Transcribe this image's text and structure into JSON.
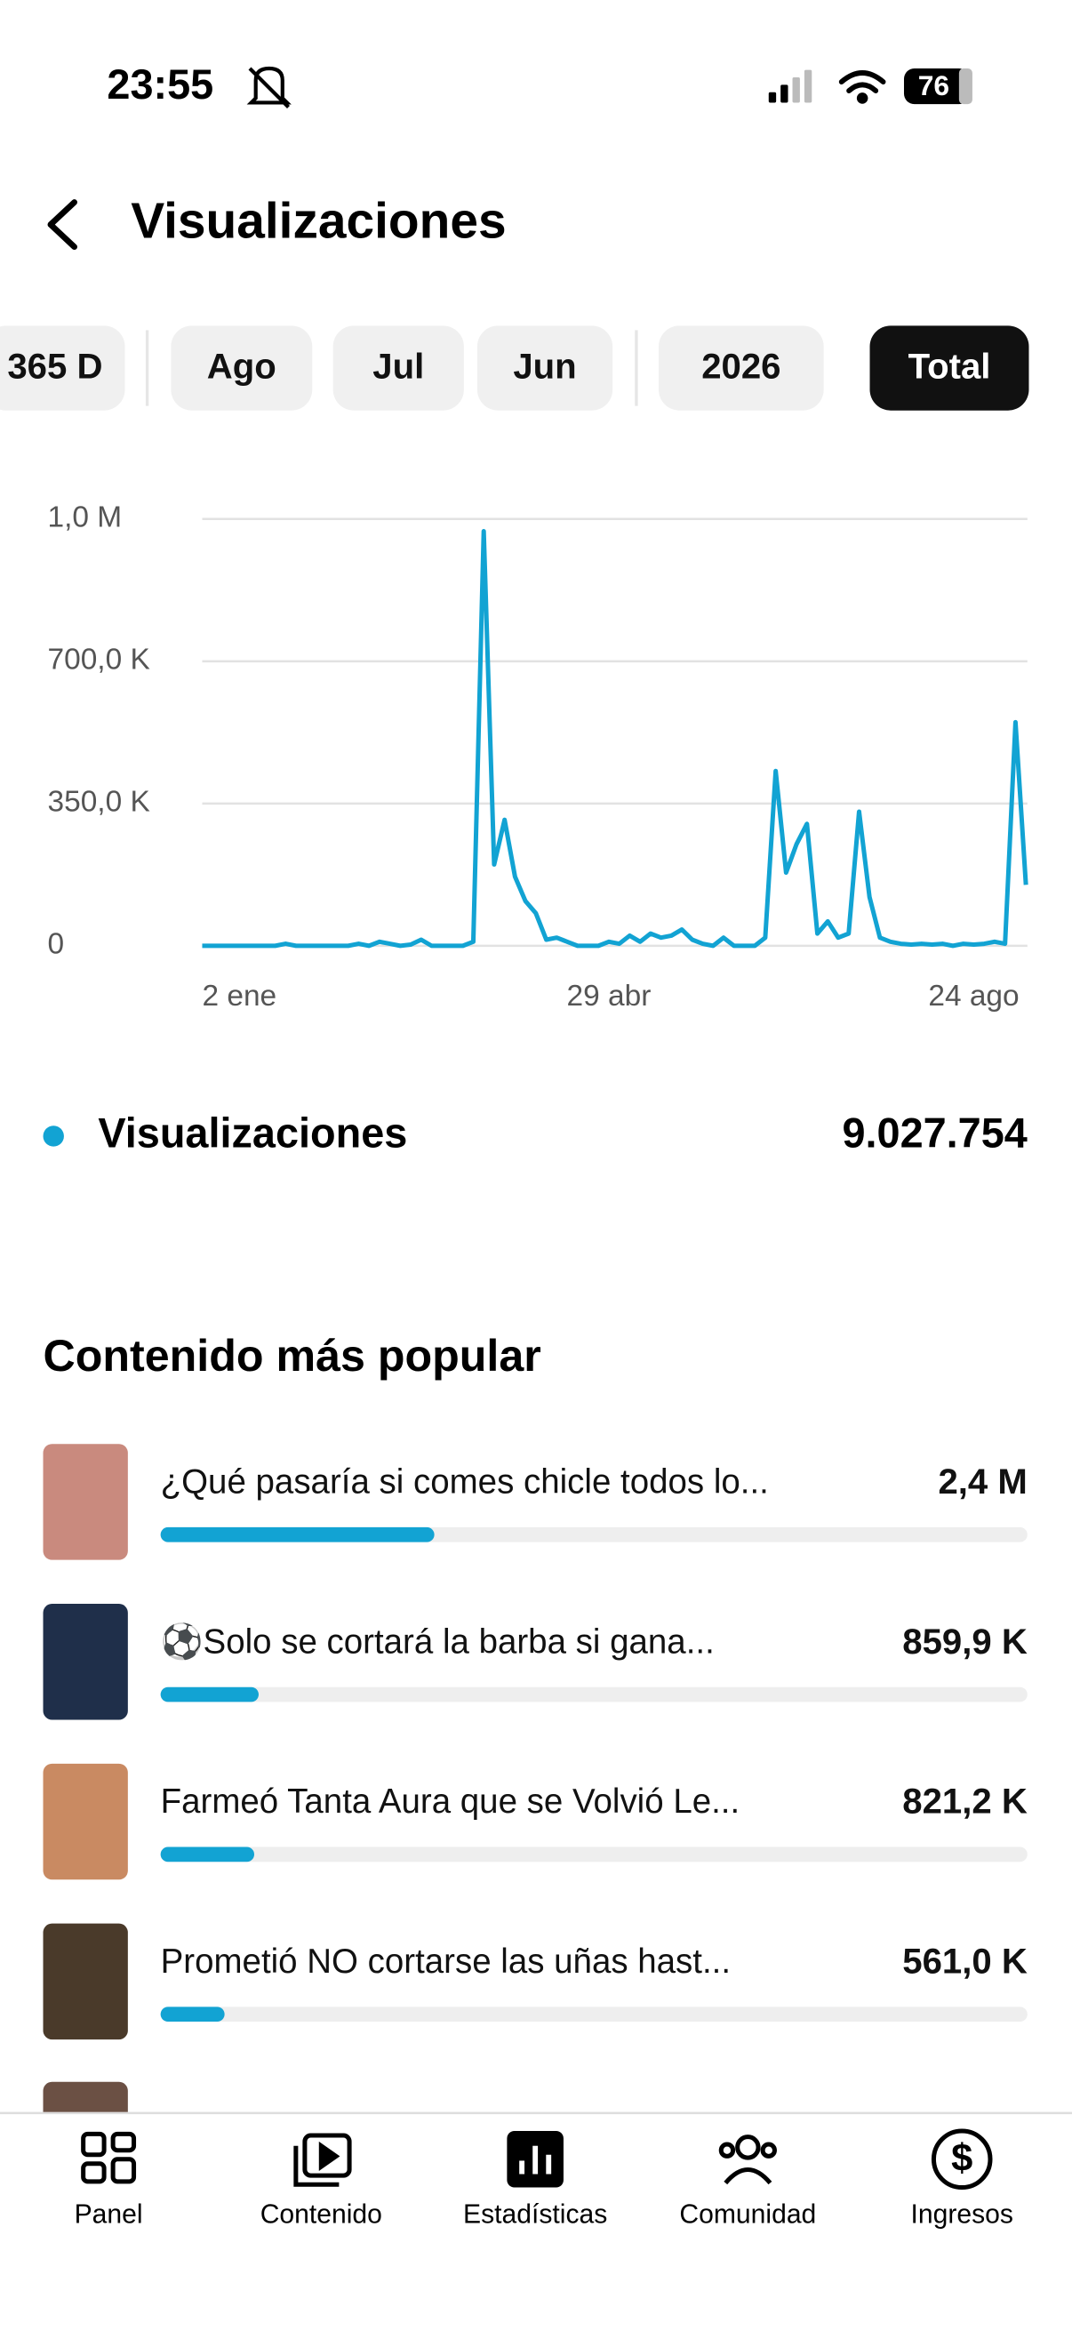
{
  "status_bar": {
    "time": "23:55",
    "battery": "76"
  },
  "header": {
    "title": "Visualizaciones"
  },
  "tabs": {
    "items": [
      "365 D",
      "Ago",
      "Jul",
      "Jun",
      "2026",
      "Total"
    ],
    "selected": 5
  },
  "chart_data": {
    "type": "line",
    "color": "#12a3d3",
    "grid": true,
    "categories": [
      "2 ene",
      null,
      null,
      null,
      null,
      null,
      null,
      null,
      null,
      null,
      null,
      null,
      null,
      null,
      null,
      null,
      null,
      null,
      null,
      null,
      null,
      null,
      null,
      null,
      null,
      null,
      null,
      null,
      null,
      null,
      null,
      null,
      null,
      null,
      null,
      null,
      null,
      null,
      null,
      "29 abr",
      null,
      null,
      null,
      null,
      null,
      null,
      null,
      null,
      null,
      null,
      null,
      null,
      null,
      null,
      null,
      null,
      null,
      null,
      null,
      null,
      null,
      null,
      null,
      null,
      null,
      null,
      null,
      null,
      null,
      null,
      null,
      null,
      null,
      null,
      "24 ago",
      null,
      null,
      null,
      null,
      null
    ],
    "values": [
      0,
      0,
      0,
      0,
      0,
      0,
      0,
      0,
      5000,
      0,
      0,
      0,
      0,
      0,
      0,
      5000,
      0,
      10000,
      5000,
      0,
      3000,
      15000,
      0,
      0,
      0,
      0,
      10000,
      1020000,
      200000,
      310000,
      170000,
      110000,
      80000,
      15000,
      20000,
      10000,
      0,
      0,
      0,
      10000,
      5000,
      25000,
      10000,
      30000,
      20000,
      25000,
      40000,
      15000,
      5000,
      0,
      20000,
      0,
      0,
      0,
      20000,
      430000,
      180000,
      250000,
      300000,
      30000,
      60000,
      20000,
      30000,
      330000,
      120000,
      20000,
      10000,
      5000,
      3000,
      5000,
      3000,
      5000,
      0,
      5000,
      3000,
      5000,
      10000,
      5000,
      550000,
      150000
    ],
    "ylim": [
      0,
      1050000
    ],
    "yticks": [
      0,
      {
        "value": 350000,
        "label": "350,0 K"
      },
      {
        "value": 700000,
        "label": "700,0 K"
      },
      {
        "value": 1050000,
        "label": "1,0 M"
      }
    ]
  },
  "summary": {
    "label": "Visualizaciones",
    "value": "9.027.754"
  },
  "popular": {
    "title": "Contenido más popular",
    "items": [
      {
        "title": "¿Qué pasaría si comes chicle todos lo...",
        "views": 2400000,
        "views_label": "2,4 M"
      },
      {
        "title": "⚽Solo se cortará la barba si gana...",
        "views": 859900,
        "views_label": "859,9 K"
      },
      {
        "title": "Farmeó Tanta Aura que se Volvió Le...",
        "views": 821200,
        "views_label": "821,2 K"
      },
      {
        "title": "Prometió NO cortarse las uñas hast...",
        "views": 561000,
        "views_label": "561,0 K"
      }
    ]
  },
  "nav": [
    "Panel",
    "Contenido",
    "Estadísticas",
    "Comunidad",
    "Ingresos"
  ]
}
